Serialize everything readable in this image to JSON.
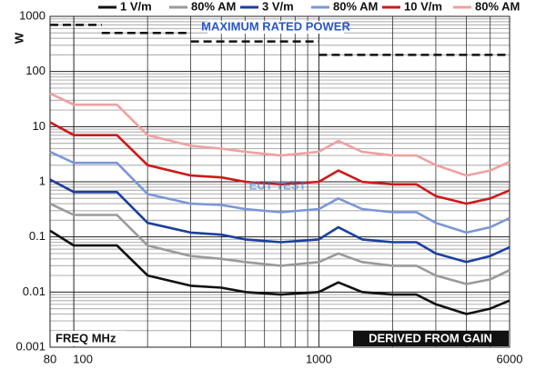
{
  "chart_data": {
    "type": "line",
    "y_label": "W",
    "x_label": "FREQ MHz",
    "note": "DERIVED FROM GAIN",
    "watermark": "EUT TEST",
    "xscale": "log",
    "yscale": "log",
    "xlim": [
      80,
      6000
    ],
    "ylim": [
      0.001,
      1000
    ],
    "xticks": [
      80,
      100,
      1000,
      6000
    ],
    "yticks": [
      1000,
      100,
      10,
      1,
      0.1,
      0.01,
      0.001
    ],
    "xminor": [
      200,
      300,
      400,
      500,
      600,
      700,
      800,
      900,
      2000,
      3000,
      4000,
      5000
    ],
    "yminor": [
      0.002,
      0.003,
      0.004,
      0.005,
      0.006,
      0.007,
      0.008,
      0.009,
      0.02,
      0.03,
      0.04,
      0.05,
      0.06,
      0.07,
      0.08,
      0.09,
      0.2,
      0.3,
      0.4,
      0.5,
      0.6,
      0.7,
      0.8,
      0.9,
      2,
      3,
      4,
      5,
      6,
      7,
      8,
      9,
      20,
      30,
      40,
      50,
      60,
      70,
      80,
      90,
      200,
      300,
      400,
      500,
      600,
      700,
      800,
      900
    ],
    "grid": true,
    "max_rated_power": {
      "label": "MAXIMUM RATED POWER",
      "color": "#111111",
      "segments": [
        {
          "x": [
            80,
            130
          ],
          "value": 700
        },
        {
          "x": [
            130,
            300
          ],
          "value": 500
        },
        {
          "x": [
            300,
            1000
          ],
          "value": 350
        },
        {
          "x": [
            1000,
            6000
          ],
          "value": 200
        }
      ]
    },
    "x": [
      80,
      100,
      150,
      200,
      300,
      400,
      500,
      700,
      1000,
      1200,
      1500,
      2000,
      2500,
      3000,
      4000,
      5000,
      6000
    ],
    "series": [
      {
        "name": "1 V/m",
        "color": "#111111",
        "values": [
          0.13,
          0.07,
          0.07,
          0.02,
          0.013,
          0.012,
          0.01,
          0.009,
          0.01,
          0.015,
          0.01,
          0.009,
          0.009,
          0.006,
          0.004,
          0.005,
          0.007
        ]
      },
      {
        "name": "80% AM",
        "color": "#9a9a9a",
        "values": [
          0.4,
          0.25,
          0.25,
          0.07,
          0.045,
          0.04,
          0.035,
          0.03,
          0.035,
          0.05,
          0.035,
          0.03,
          0.03,
          0.02,
          0.014,
          0.017,
          0.025
        ]
      },
      {
        "name": "3 V/m",
        "color": "#1c3f9e",
        "values": [
          1.1,
          0.65,
          0.65,
          0.18,
          0.12,
          0.11,
          0.09,
          0.08,
          0.09,
          0.15,
          0.09,
          0.08,
          0.08,
          0.05,
          0.035,
          0.045,
          0.065
        ]
      },
      {
        "name": "80% AM",
        "color": "#7b96d8",
        "values": [
          3.5,
          2.2,
          2.2,
          0.6,
          0.4,
          0.38,
          0.32,
          0.28,
          0.32,
          0.5,
          0.32,
          0.28,
          0.28,
          0.18,
          0.12,
          0.15,
          0.22
        ]
      },
      {
        "name": "10 V/m",
        "color": "#cc1a1a",
        "values": [
          12,
          7,
          7,
          2,
          1.3,
          1.2,
          1,
          0.9,
          1,
          1.6,
          1,
          0.9,
          0.9,
          0.55,
          0.4,
          0.5,
          0.7
        ]
      },
      {
        "name": "80% AM",
        "color": "#f0a0a0",
        "values": [
          40,
          25,
          25,
          7,
          4.5,
          4,
          3.5,
          3,
          3.5,
          5.5,
          3.5,
          3,
          3,
          2,
          1.3,
          1.6,
          2.3
        ]
      }
    ]
  }
}
